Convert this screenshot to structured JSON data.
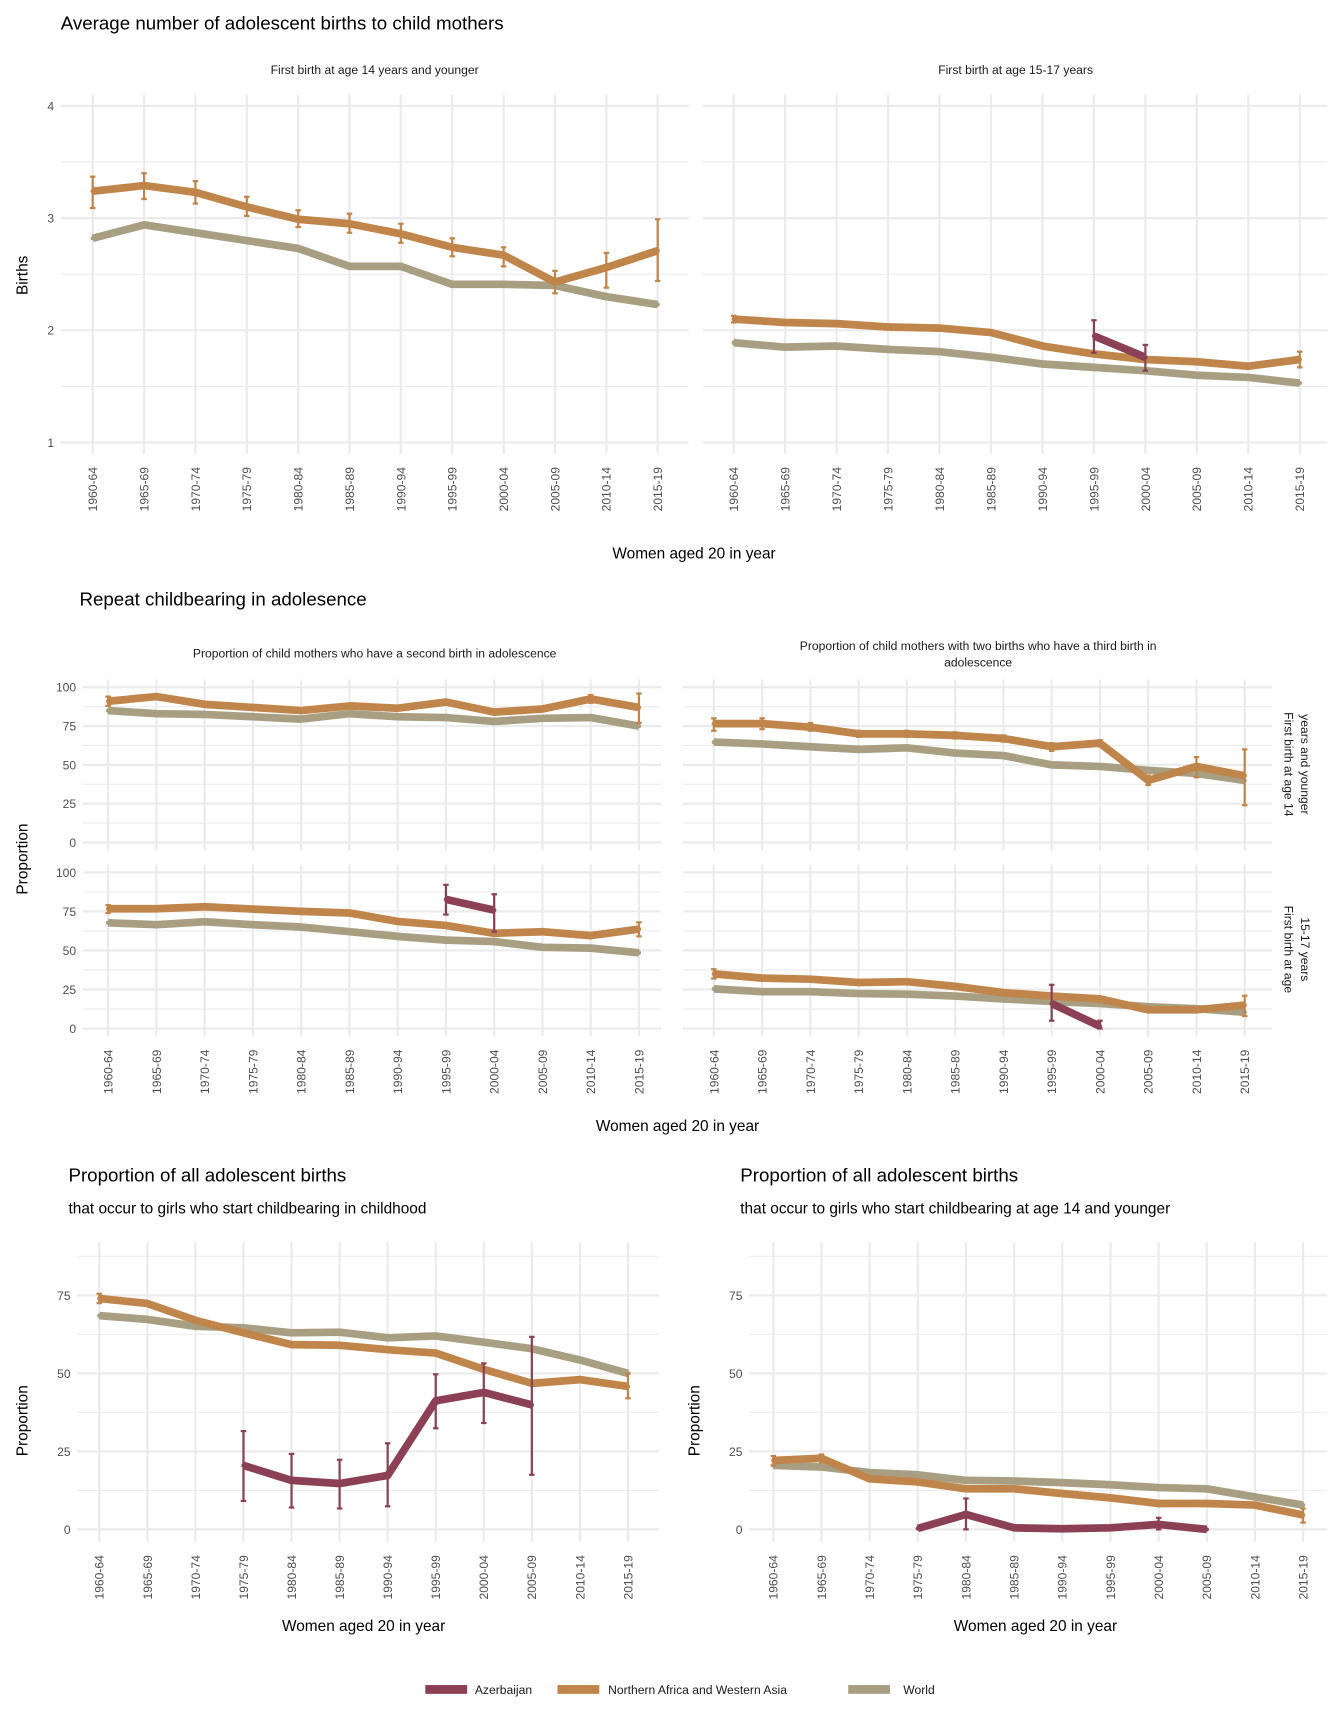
{
  "section_a": {
    "title": "Average number of adolescent births to child mothers",
    "ylabel": "Births",
    "xlabel": "Women aged 20 in year"
  },
  "section_b": {
    "title": "Repeat childbearing in adolesence",
    "ylabel": "Proportion",
    "xlabel": "Women aged 20 in year",
    "col_strips": [
      "Proportion of child mothers who have a second birth in adolescence",
      "Proportion of child mothers with two births who have a third birth in",
      "adolescence"
    ],
    "row_strips": [
      "First birth at age 14",
      "years and younger",
      "First birth at age",
      "15-17 years"
    ]
  },
  "section_c": {
    "left": {
      "title": "Proportion of all adolescent births",
      "subtitle": "that occur to girls who start childbearing in childhood",
      "ylabel": "Proportion",
      "xlabel": "Women aged 20 in year"
    },
    "right": {
      "title": "Proportion of all adolescent births",
      "subtitle": "that occur to girls who start childbearing at age 14 and younger",
      "ylabel": "Proportion",
      "xlabel": "Women aged 20 in year"
    }
  },
  "legend": [
    {
      "label": "Azerbaijan",
      "color": "#8B4055"
    },
    {
      "label": "Northern Africa and Western Asia",
      "color": "#C0854A"
    },
    {
      "label": "World",
      "color": "#A89F83"
    }
  ],
  "colors": {
    "Azerbaijan": "#8B4055",
    "Northern Africa and Western Asia": "#C0854A",
    "World": "#A89F83",
    "grid": "#EBEBEB"
  },
  "chart_data": [
    {
      "type": "line",
      "strip": "First birth at age 14 years and younger",
      "ylim": [
        0.9,
        4.1
      ],
      "yticks": [
        1,
        2,
        3,
        4
      ],
      "grid": true,
      "categories": [
        "1960-64",
        "1965-69",
        "1970-74",
        "1975-79",
        "1980-84",
        "1985-89",
        "1990-94",
        "1995-99",
        "2000-04",
        "2005-09",
        "2010-14",
        "2015-19"
      ],
      "series": [
        {
          "name": "World",
          "values": [
            2.82,
            2.94,
            2.87,
            2.8,
            2.73,
            2.57,
            2.57,
            2.41,
            2.41,
            2.4,
            2.3,
            2.23
          ]
        },
        {
          "name": "Northern Africa and Western Asia",
          "values": [
            3.24,
            3.29,
            3.23,
            3.1,
            2.99,
            2.95,
            2.86,
            2.74,
            2.67,
            2.43,
            2.56,
            2.71
          ],
          "lower": [
            3.09,
            3.17,
            3.13,
            3.02,
            2.92,
            2.87,
            2.78,
            2.66,
            2.57,
            2.33,
            2.38,
            2.44
          ],
          "upper": [
            3.37,
            3.4,
            3.33,
            3.19,
            3.07,
            3.04,
            2.95,
            2.82,
            2.74,
            2.53,
            2.69,
            2.99
          ]
        }
      ]
    },
    {
      "type": "line",
      "strip": "First birth at age 15-17 years",
      "ylim": [
        0.9,
        4.1
      ],
      "yticks": [
        1,
        2,
        3,
        4
      ],
      "grid": true,
      "categories": [
        "1960-64",
        "1965-69",
        "1970-74",
        "1975-79",
        "1980-84",
        "1985-89",
        "1990-94",
        "1995-99",
        "2000-04",
        "2005-09",
        "2010-14",
        "2015-19"
      ],
      "series": [
        {
          "name": "World",
          "values": [
            1.89,
            1.85,
            1.86,
            1.83,
            1.81,
            1.76,
            1.7,
            1.67,
            1.64,
            1.6,
            1.58,
            1.53
          ]
        },
        {
          "name": "Northern Africa and Western Asia",
          "values": [
            2.1,
            2.07,
            2.06,
            2.03,
            2.02,
            1.98,
            1.86,
            1.79,
            1.74,
            1.72,
            1.68,
            1.74
          ],
          "lower": [
            2.07,
            null,
            null,
            null,
            null,
            null,
            null,
            null,
            null,
            null,
            null,
            1.67
          ],
          "upper": [
            2.13,
            null,
            null,
            null,
            null,
            null,
            null,
            null,
            null,
            null,
            null,
            1.81
          ]
        },
        {
          "name": "Azerbaijan",
          "values": [
            null,
            null,
            null,
            null,
            null,
            null,
            null,
            1.95,
            1.76,
            null,
            null,
            null
          ],
          "lower": [
            null,
            null,
            null,
            null,
            null,
            null,
            null,
            1.8,
            1.64,
            null,
            null,
            null
          ],
          "upper": [
            null,
            null,
            null,
            null,
            null,
            null,
            null,
            2.09,
            1.87,
            null,
            null,
            null
          ]
        }
      ]
    },
    {
      "type": "line",
      "strip": "Second birth / First birth at age 14 years and younger",
      "ylim": [
        -5,
        105
      ],
      "yticks": [
        0,
        25,
        50,
        75,
        100
      ],
      "grid": true,
      "categories": [
        "1960-64",
        "1965-69",
        "1970-74",
        "1975-79",
        "1980-84",
        "1985-89",
        "1990-94",
        "1995-99",
        "2000-04",
        "2005-09",
        "2010-14",
        "2015-19"
      ],
      "series": [
        {
          "name": "World",
          "values": [
            85,
            83,
            82.5,
            81,
            79.5,
            83,
            81,
            80.5,
            78,
            80,
            80.5,
            75
          ]
        },
        {
          "name": "Northern Africa and Western Asia",
          "values": [
            91,
            94,
            89,
            87,
            85,
            88,
            86.5,
            90.5,
            84,
            86,
            92.5,
            87
          ],
          "lower": [
            88,
            null,
            null,
            null,
            null,
            null,
            null,
            null,
            null,
            null,
            90,
            77
          ],
          "upper": [
            94,
            null,
            null,
            null,
            null,
            null,
            null,
            null,
            null,
            null,
            95,
            96
          ]
        }
      ]
    },
    {
      "type": "line",
      "strip": "Third birth / First birth at age 14 years and younger",
      "ylim": [
        -5,
        105
      ],
      "yticks": [
        0,
        25,
        50,
        75,
        100
      ],
      "grid": true,
      "categories": [
        "1960-64",
        "1965-69",
        "1970-74",
        "1975-79",
        "1980-84",
        "1985-89",
        "1990-94",
        "1995-99",
        "2000-04",
        "2005-09",
        "2010-14",
        "2015-19"
      ],
      "series": [
        {
          "name": "World",
          "values": [
            64.7,
            63.5,
            61.7,
            60,
            61,
            57.6,
            56,
            50,
            49,
            46.5,
            44.5,
            40
          ]
        },
        {
          "name": "Northern Africa and Western Asia",
          "values": [
            76.6,
            76.6,
            74.3,
            70,
            70,
            69,
            67,
            61.7,
            64,
            40,
            49,
            43
          ],
          "lower": [
            72,
            73,
            72,
            68,
            68,
            67,
            65,
            59,
            62,
            37,
            42,
            24
          ],
          "upper": [
            80,
            80,
            77,
            72,
            72,
            71,
            69,
            64,
            66,
            43,
            55,
            60
          ]
        }
      ]
    },
    {
      "type": "line",
      "strip": "Second birth / First birth at age 15-17 years",
      "ylim": [
        -5,
        105
      ],
      "yticks": [
        0,
        25,
        50,
        75,
        100
      ],
      "grid": true,
      "categories": [
        "1960-64",
        "1965-69",
        "1970-74",
        "1975-79",
        "1980-84",
        "1985-89",
        "1990-94",
        "1995-99",
        "2000-04",
        "2005-09",
        "2010-14",
        "2015-19"
      ],
      "series": [
        {
          "name": "World",
          "values": [
            67.7,
            66.5,
            68.4,
            66.5,
            65,
            62,
            59,
            56.6,
            55.7,
            52,
            51.5,
            48.5
          ]
        },
        {
          "name": "Northern Africa and Western Asia",
          "values": [
            76.7,
            76.7,
            78,
            76.5,
            75,
            74,
            68.6,
            66,
            61,
            62,
            59.5,
            63.7
          ],
          "lower": [
            74,
            null,
            null,
            null,
            null,
            null,
            null,
            null,
            null,
            null,
            null,
            59
          ],
          "upper": [
            79,
            null,
            null,
            null,
            null,
            null,
            null,
            null,
            null,
            null,
            null,
            68
          ]
        },
        {
          "name": "Azerbaijan",
          "values": [
            null,
            null,
            null,
            null,
            null,
            null,
            null,
            82.7,
            75.8,
            null,
            null,
            null
          ],
          "lower": [
            null,
            null,
            null,
            null,
            null,
            null,
            null,
            73,
            62,
            null,
            null,
            null
          ],
          "upper": [
            null,
            null,
            null,
            null,
            null,
            null,
            null,
            92,
            86,
            null,
            null,
            null
          ]
        }
      ]
    },
    {
      "type": "line",
      "strip": "Third birth / First birth at age 15-17 years",
      "ylim": [
        -5,
        105
      ],
      "yticks": [
        0,
        25,
        50,
        75,
        100
      ],
      "grid": true,
      "categories": [
        "1960-64",
        "1965-69",
        "1970-74",
        "1975-79",
        "1980-84",
        "1985-89",
        "1990-94",
        "1995-99",
        "2000-04",
        "2005-09",
        "2010-14",
        "2015-19"
      ],
      "series": [
        {
          "name": "World",
          "values": [
            25.4,
            23.6,
            23.6,
            22.4,
            22,
            20.8,
            19,
            17.3,
            16,
            14,
            12.7,
            10.4
          ]
        },
        {
          "name": "Northern Africa and Western Asia",
          "values": [
            35,
            32.3,
            31.6,
            29.5,
            30,
            27,
            23,
            20.8,
            19,
            12,
            12,
            15
          ],
          "lower": [
            32,
            null,
            null,
            null,
            null,
            null,
            null,
            null,
            null,
            null,
            null,
            8
          ],
          "upper": [
            38,
            null,
            null,
            null,
            null,
            null,
            null,
            null,
            null,
            null,
            null,
            21
          ]
        },
        {
          "name": "Azerbaijan",
          "values": [
            null,
            null,
            null,
            null,
            null,
            null,
            null,
            16,
            1.5,
            null,
            null,
            null
          ],
          "lower": [
            null,
            null,
            null,
            null,
            null,
            null,
            null,
            5,
            0,
            null,
            null,
            null
          ],
          "upper": [
            null,
            null,
            null,
            null,
            null,
            null,
            null,
            28,
            5,
            null,
            null,
            null
          ]
        }
      ]
    },
    {
      "type": "line",
      "strip": "that occur to girls who start childbearing in childhood",
      "ylim": [
        -4,
        92
      ],
      "yticks": [
        0,
        25,
        50,
        75
      ],
      "grid": true,
      "categories": [
        "1960-64",
        "1965-69",
        "1970-74",
        "1975-79",
        "1980-84",
        "1985-89",
        "1990-94",
        "1995-99",
        "2000-04",
        "2005-09",
        "2010-14",
        "2015-19"
      ],
      "series": [
        {
          "name": "World",
          "values": [
            68.5,
            67.3,
            65.1,
            64.6,
            63,
            63.2,
            61.4,
            62,
            60,
            57.9,
            54.3,
            50
          ]
        },
        {
          "name": "Northern Africa and Western Asia",
          "values": [
            74,
            72.4,
            67,
            63,
            59.2,
            59,
            57.6,
            56.5,
            51.3,
            46.8,
            48,
            45.8
          ],
          "lower": [
            72.5,
            null,
            null,
            null,
            null,
            null,
            null,
            null,
            null,
            null,
            null,
            42
          ],
          "upper": [
            75.5,
            null,
            null,
            null,
            null,
            null,
            null,
            null,
            null,
            null,
            null,
            50
          ]
        },
        {
          "name": "Azerbaijan",
          "values": [
            null,
            null,
            null,
            20.5,
            15.7,
            14.7,
            17.3,
            41.2,
            43.9,
            39.9,
            null,
            null
          ],
          "lower": [
            null,
            null,
            null,
            9.1,
            7,
            6.7,
            7.4,
            32.4,
            34.1,
            17.5,
            null,
            null
          ],
          "upper": [
            null,
            null,
            null,
            31.5,
            24.2,
            22.3,
            27.6,
            49.7,
            53.2,
            61.7,
            null,
            null
          ]
        }
      ]
    },
    {
      "type": "line",
      "strip": "that occur to girls who start childbearing at age 14 and younger",
      "ylim": [
        -4,
        92
      ],
      "yticks": [
        0,
        25,
        50,
        75
      ],
      "grid": true,
      "categories": [
        "1960-64",
        "1965-69",
        "1970-74",
        "1975-79",
        "1980-84",
        "1985-89",
        "1990-94",
        "1995-99",
        "2000-04",
        "2005-09",
        "2010-14",
        "2015-19"
      ],
      "series": [
        {
          "name": "World",
          "values": [
            20.5,
            20,
            18.2,
            17.5,
            15.7,
            15.5,
            15,
            14.3,
            13.4,
            13,
            10.4,
            7.8
          ]
        },
        {
          "name": "Northern Africa and Western Asia",
          "values": [
            22.1,
            22.8,
            16.2,
            15.2,
            13,
            13,
            11.5,
            10.1,
            8.3,
            8.3,
            7.8,
            4.6
          ],
          "lower": [
            20.5,
            21.5,
            null,
            null,
            null,
            null,
            null,
            null,
            null,
            null,
            null,
            2.2
          ],
          "upper": [
            23.5,
            24,
            null,
            null,
            null,
            null,
            null,
            null,
            null,
            null,
            null,
            6.7
          ]
        },
        {
          "name": "Azerbaijan",
          "values": [
            null,
            null,
            null,
            0.3,
            4.8,
            0.5,
            0.2,
            0.5,
            1.6,
            0,
            null,
            null
          ],
          "lower": [
            null,
            null,
            null,
            null,
            0,
            null,
            null,
            null,
            0,
            null,
            null,
            null
          ],
          "upper": [
            null,
            null,
            null,
            null,
            9.9,
            null,
            null,
            null,
            3.7,
            null,
            null,
            null
          ]
        }
      ]
    }
  ]
}
